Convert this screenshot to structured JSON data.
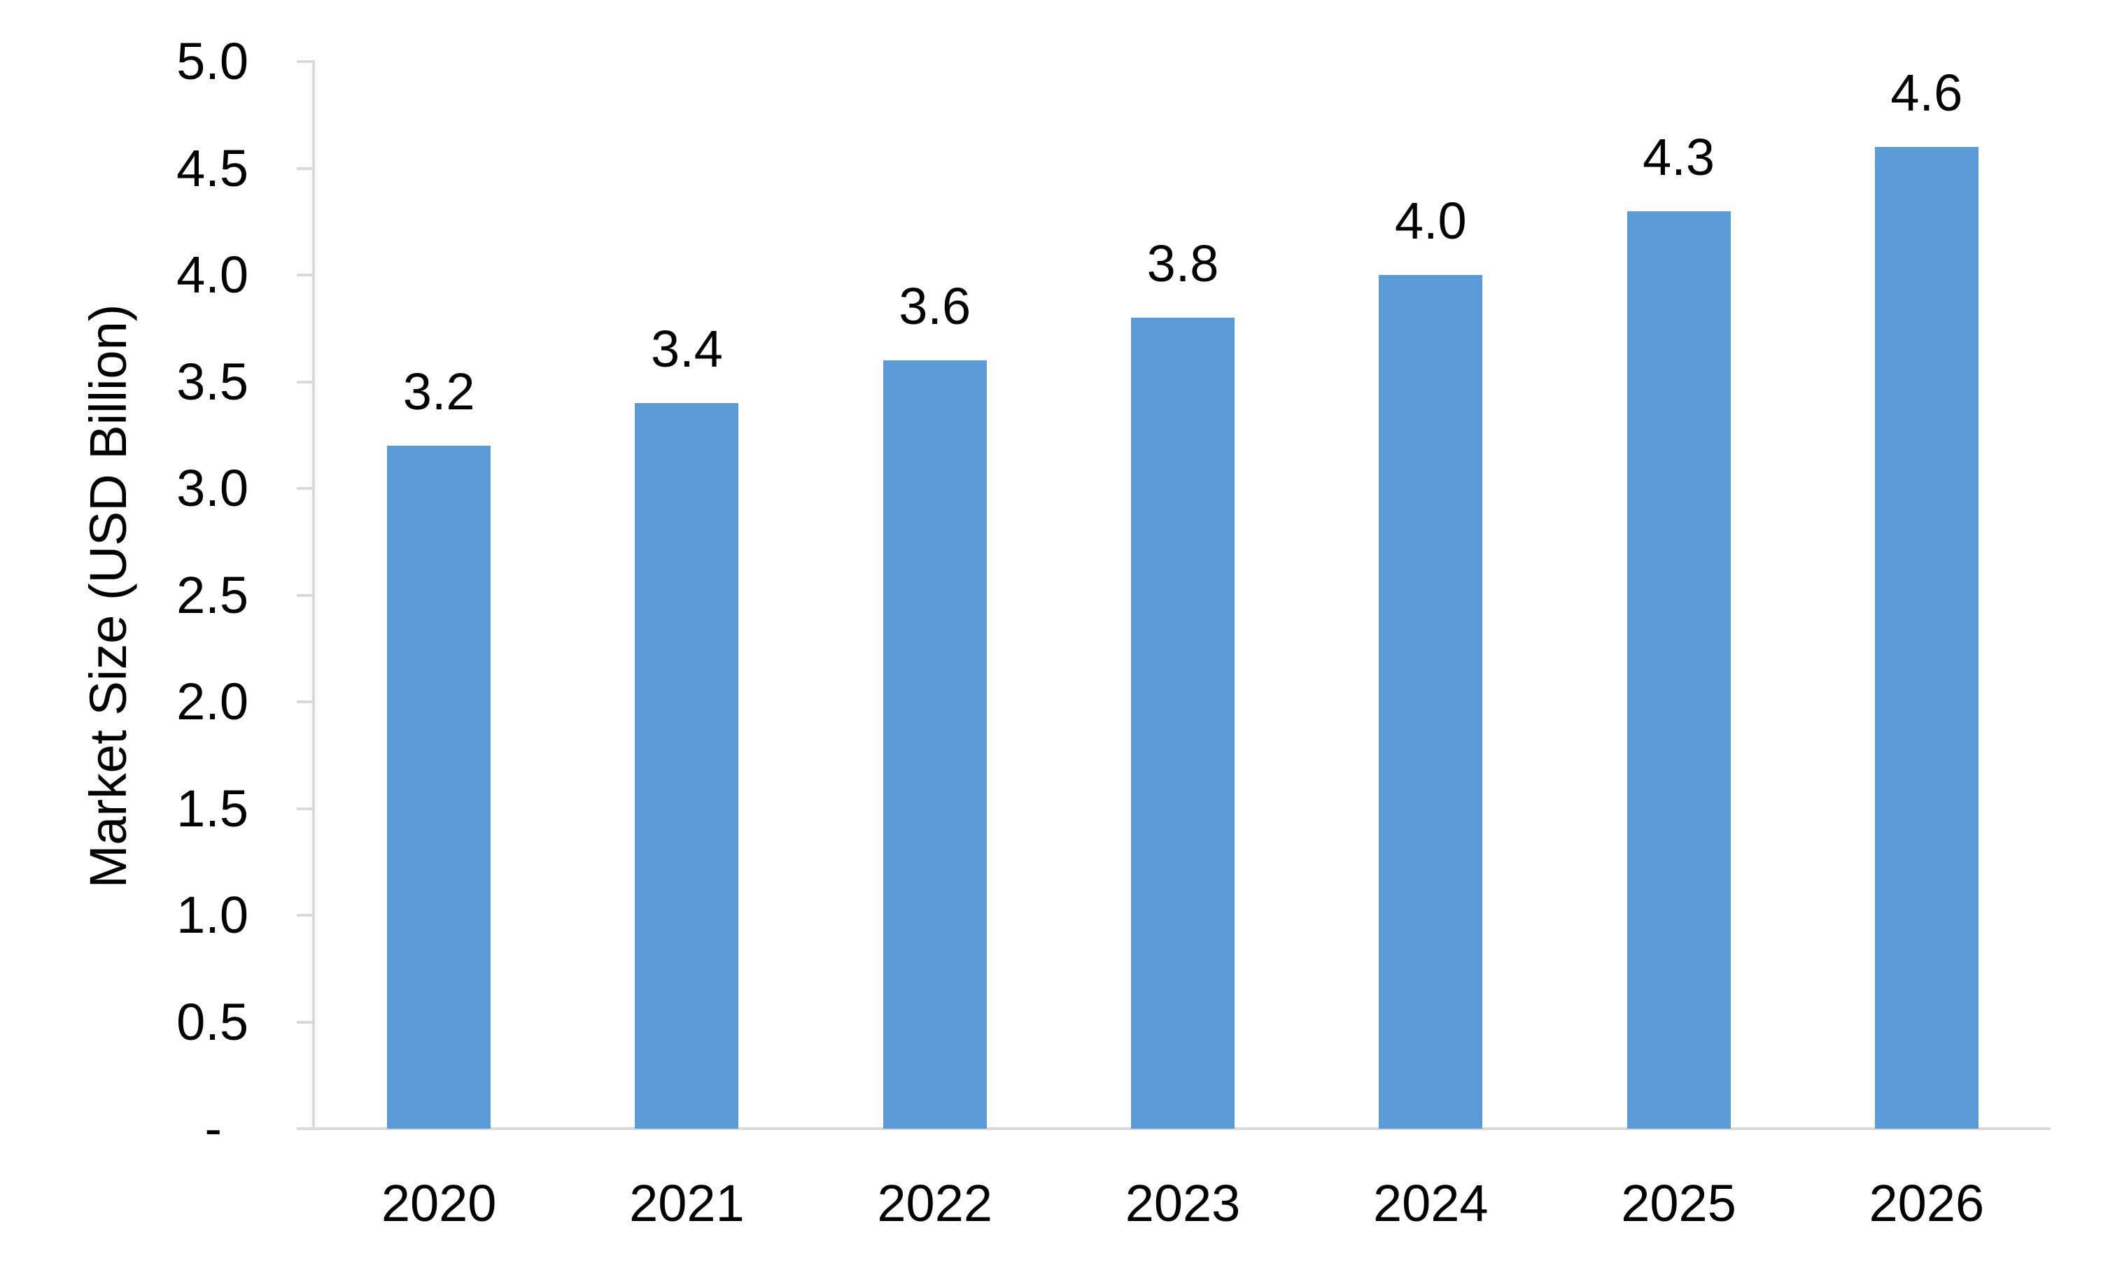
{
  "chart_data": {
    "type": "bar",
    "title": "",
    "xlabel": "",
    "ylabel": "Market Size (USD Billion)",
    "categories": [
      "2020",
      "2021",
      "2022",
      "2023",
      "2024",
      "2025",
      "2026"
    ],
    "series": [
      {
        "name": "Market Size",
        "values": [
          3.2,
          3.4,
          3.6,
          3.8,
          4.0,
          4.3,
          4.6
        ]
      }
    ],
    "bar_labels": [
      "3.2",
      "3.4",
      "3.6",
      "3.8",
      "4.0",
      "4.3",
      "4.6"
    ],
    "ylim": [
      0,
      5
    ],
    "y_tick_step": 0.5,
    "y_ticks": [
      {
        "value": 5.0,
        "label": "5.0"
      },
      {
        "value": 4.5,
        "label": "4.5"
      },
      {
        "value": 4.0,
        "label": "4.0"
      },
      {
        "value": 3.5,
        "label": "3.5"
      },
      {
        "value": 3.0,
        "label": "3.0"
      },
      {
        "value": 2.5,
        "label": "2.5"
      },
      {
        "value": 2.0,
        "label": "2.0"
      },
      {
        "value": 1.5,
        "label": "1.5"
      },
      {
        "value": 1.0,
        "label": "1.0"
      },
      {
        "value": 0.5,
        "label": "0.5"
      },
      {
        "value": 0.0,
        "label": "-"
      }
    ],
    "grid": "off",
    "legend": "none",
    "colors": {
      "bar": "#5B9BD5",
      "axis": "#D9D9D9",
      "text": "#000000",
      "background": "#FFFFFF"
    }
  }
}
